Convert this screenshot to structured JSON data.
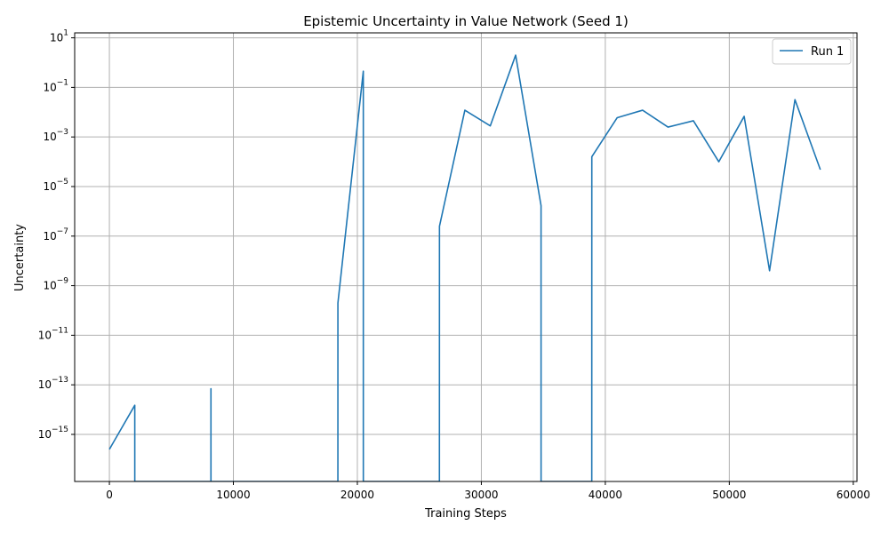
{
  "chart_data": {
    "type": "line",
    "title": "Epistemic Uncertainty in Value Network (Seed 1)",
    "xlabel": "Training Steps",
    "ylabel": "Uncertainty",
    "xlim": [
      -2800,
      60300
    ],
    "ylim_exponent": [
      -16.9,
      1.2
    ],
    "y_scale": "log",
    "grid": true,
    "legend_position": "upper right",
    "x_ticks": [
      0,
      10000,
      20000,
      30000,
      40000,
      50000,
      60000
    ],
    "y_tick_exponents": [
      -15,
      -13,
      -11,
      -9,
      -7,
      -5,
      -3,
      -1,
      1
    ],
    "series": [
      {
        "name": "Run 1",
        "color": "#1f77b4",
        "points": [
          {
            "x": 0,
            "y": 2.5e-16
          },
          {
            "x": 2048,
            "y": 1.5e-14
          },
          {
            "x": 2049,
            "y": 0
          },
          {
            "x": 8190,
            "y": 0
          },
          {
            "x": 8191,
            "y": 7e-14
          },
          {
            "x": 8192,
            "y": 0
          },
          {
            "x": 18430,
            "y": 0
          },
          {
            "x": 18432,
            "y": 2e-10
          },
          {
            "x": 20480,
            "y": 0.45
          },
          {
            "x": 20482,
            "y": 0
          },
          {
            "x": 26620,
            "y": 0
          },
          {
            "x": 26624,
            "y": 2.5e-07
          },
          {
            "x": 28672,
            "y": 0.012
          },
          {
            "x": 30720,
            "y": 0.0028
          },
          {
            "x": 32768,
            "y": 2.0
          },
          {
            "x": 34816,
            "y": 1.7e-06
          },
          {
            "x": 34818,
            "y": 0
          },
          {
            "x": 38908,
            "y": 0
          },
          {
            "x": 38912,
            "y": 0.00016
          },
          {
            "x": 40960,
            "y": 0.006
          },
          {
            "x": 43008,
            "y": 0.012
          },
          {
            "x": 45056,
            "y": 0.0025
          },
          {
            "x": 47104,
            "y": 0.0045
          },
          {
            "x": 49152,
            "y": 0.0001
          },
          {
            "x": 51200,
            "y": 0.0068
          },
          {
            "x": 53248,
            "y": 4e-09
          },
          {
            "x": 55296,
            "y": 0.032
          },
          {
            "x": 57344,
            "y": 4.8e-05
          }
        ]
      }
    ]
  }
}
